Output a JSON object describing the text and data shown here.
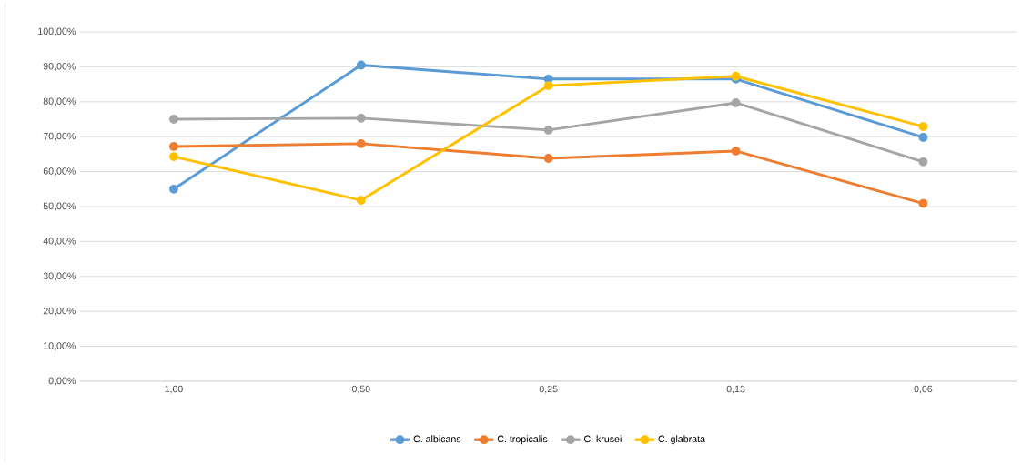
{
  "chart_data": {
    "type": "line",
    "categories": [
      "1,00",
      "0,50",
      "0,25",
      "0,13",
      "0,06"
    ],
    "series": [
      {
        "name": "C. albicans",
        "color": "#5b9bd5",
        "values": [
          55,
          90.5,
          86.5,
          86.5,
          69.8
        ]
      },
      {
        "name": "C. tropicalis",
        "color": "#ed7d31",
        "values": [
          67.2,
          68,
          63.8,
          65.9,
          50.9
        ]
      },
      {
        "name": "C. krusei",
        "color": "#a5a5a5",
        "values": [
          75,
          75.3,
          71.9,
          79.7,
          62.8
        ]
      },
      {
        "name": "C. glabrata",
        "color": "#ffc000",
        "values": [
          64.3,
          51.8,
          84.6,
          87.3,
          72.9
        ]
      }
    ],
    "ylim": [
      0,
      100
    ],
    "yticks": [
      {
        "value": 0,
        "label": "0,00%"
      },
      {
        "value": 10,
        "label": "10,00%"
      },
      {
        "value": 20,
        "label": "20,00%"
      },
      {
        "value": 30,
        "label": "30,00%"
      },
      {
        "value": 40,
        "label": "40,00%"
      },
      {
        "value": 50,
        "label": "50,00%"
      },
      {
        "value": 60,
        "label": "60,00%"
      },
      {
        "value": 70,
        "label": "70,00%"
      },
      {
        "value": 80,
        "label": "80,00%"
      },
      {
        "value": 90,
        "label": "90,00%"
      },
      {
        "value": 100,
        "label": "100,00%"
      }
    ],
    "grid": "y",
    "legend": "bottom",
    "marker": "circle",
    "line_style": "solid"
  }
}
